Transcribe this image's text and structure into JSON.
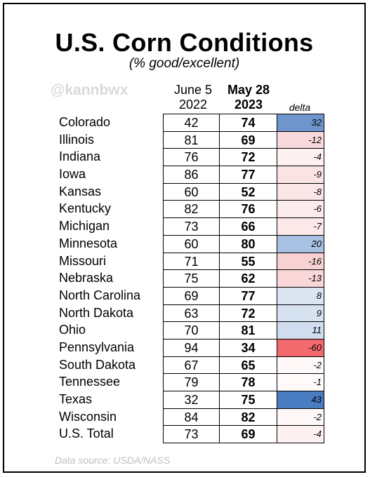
{
  "title": "U.S. Corn Conditions",
  "subtitle": "(% good/excellent)",
  "watermark": "@kannbwx",
  "columns": {
    "c1_line1": "June 5",
    "c1_line2": "2022",
    "c2_line1": "May 28",
    "c2_line2": "2023",
    "delta": "delta"
  },
  "rows": [
    {
      "state": "Colorado",
      "y2022": "42",
      "y2023": "74",
      "delta": "32",
      "color": "#6e95cc"
    },
    {
      "state": "Illinois",
      "y2022": "81",
      "y2023": "69",
      "delta": "-12",
      "color": "#f9d9db"
    },
    {
      "state": "Indiana",
      "y2022": "76",
      "y2023": "72",
      "delta": "-4",
      "color": "#fdf1f1"
    },
    {
      "state": "Iowa",
      "y2022": "86",
      "y2023": "77",
      "delta": "-9",
      "color": "#fbe3e4"
    },
    {
      "state": "Kansas",
      "y2022": "60",
      "y2023": "52",
      "delta": "-8",
      "color": "#fbe6e7"
    },
    {
      "state": "Kentucky",
      "y2022": "82",
      "y2023": "76",
      "delta": "-6",
      "color": "#fcebec"
    },
    {
      "state": "Michigan",
      "y2022": "73",
      "y2023": "66",
      "delta": "-7",
      "color": "#fce8e9"
    },
    {
      "state": "Minnesota",
      "y2022": "60",
      "y2023": "80",
      "delta": "20",
      "color": "#a8c0e2"
    },
    {
      "state": "Missouri",
      "y2022": "71",
      "y2023": "55",
      "delta": "-16",
      "color": "#f8d1d3"
    },
    {
      "state": "Nebraska",
      "y2022": "75",
      "y2023": "62",
      "delta": "-13",
      "color": "#f9d7d9"
    },
    {
      "state": "North Carolina",
      "y2022": "69",
      "y2023": "77",
      "delta": "8",
      "color": "#dbe5f2"
    },
    {
      "state": "North Dakota",
      "y2022": "63",
      "y2023": "72",
      "delta": "9",
      "color": "#d7e2f1"
    },
    {
      "state": "Ohio",
      "y2022": "70",
      "y2023": "81",
      "delta": "11",
      "color": "#d0ddef"
    },
    {
      "state": "Pennsylvania",
      "y2022": "94",
      "y2023": "34",
      "delta": "-60",
      "color": "#f26a6e"
    },
    {
      "state": "South Dakota",
      "y2022": "67",
      "y2023": "65",
      "delta": "-2",
      "color": "#fef8f8"
    },
    {
      "state": "Tennessee",
      "y2022": "79",
      "y2023": "78",
      "delta": "-1",
      "color": "#fefafa"
    },
    {
      "state": "Texas",
      "y2022": "32",
      "y2023": "75",
      "delta": "43",
      "color": "#4a7cc2"
    },
    {
      "state": "Wisconsin",
      "y2022": "84",
      "y2023": "82",
      "delta": "-2",
      "color": "#fef8f8"
    },
    {
      "state": "U.S. Total",
      "y2022": "73",
      "y2023": "69",
      "delta": "-4",
      "color": "#fdf1f1"
    }
  ],
  "source": "Data source: USDA/NASS"
}
